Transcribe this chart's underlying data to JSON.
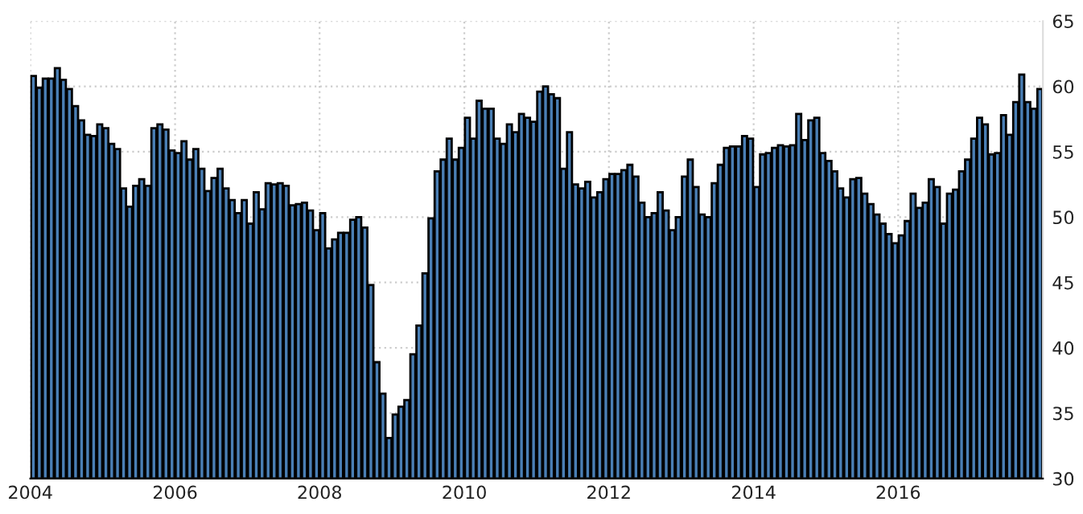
{
  "chart_data": {
    "type": "bar",
    "x": [
      "2004-01",
      "2004-02",
      "2004-03",
      "2004-04",
      "2004-05",
      "2004-06",
      "2004-07",
      "2004-08",
      "2004-09",
      "2004-10",
      "2004-11",
      "2004-12",
      "2005-01",
      "2005-02",
      "2005-03",
      "2005-04",
      "2005-05",
      "2005-06",
      "2005-07",
      "2005-08",
      "2005-09",
      "2005-10",
      "2005-11",
      "2005-12",
      "2006-01",
      "2006-02",
      "2006-03",
      "2006-04",
      "2006-05",
      "2006-06",
      "2006-07",
      "2006-08",
      "2006-09",
      "2006-10",
      "2006-11",
      "2006-12",
      "2007-01",
      "2007-02",
      "2007-03",
      "2007-04",
      "2007-05",
      "2007-06",
      "2007-07",
      "2007-08",
      "2007-09",
      "2007-10",
      "2007-11",
      "2007-12",
      "2008-01",
      "2008-02",
      "2008-03",
      "2008-04",
      "2008-05",
      "2008-06",
      "2008-07",
      "2008-08",
      "2008-09",
      "2008-10",
      "2008-11",
      "2008-12",
      "2009-01",
      "2009-02",
      "2009-03",
      "2009-04",
      "2009-05",
      "2009-06",
      "2009-07",
      "2009-08",
      "2009-09",
      "2009-10",
      "2009-11",
      "2009-12",
      "2010-01",
      "2010-02",
      "2010-03",
      "2010-04",
      "2010-05",
      "2010-06",
      "2010-07",
      "2010-08",
      "2010-09",
      "2010-10",
      "2010-11",
      "2010-12",
      "2011-01",
      "2011-02",
      "2011-03",
      "2011-04",
      "2011-05",
      "2011-06",
      "2011-07",
      "2011-08",
      "2011-09",
      "2011-10",
      "2011-11",
      "2011-12",
      "2012-01",
      "2012-02",
      "2012-03",
      "2012-04",
      "2012-05",
      "2012-06",
      "2012-07",
      "2012-08",
      "2012-09",
      "2012-10",
      "2012-11",
      "2012-12",
      "2013-01",
      "2013-02",
      "2013-03",
      "2013-04",
      "2013-05",
      "2013-06",
      "2013-07",
      "2013-08",
      "2013-09",
      "2013-10",
      "2013-11",
      "2013-12",
      "2014-01",
      "2014-02",
      "2014-03",
      "2014-04",
      "2014-05",
      "2014-06",
      "2014-07",
      "2014-08",
      "2014-09",
      "2014-10",
      "2014-11",
      "2014-12",
      "2015-01",
      "2015-02",
      "2015-03",
      "2015-04",
      "2015-05",
      "2015-06",
      "2015-07",
      "2015-08",
      "2015-09",
      "2015-10",
      "2015-11",
      "2015-12",
      "2016-01",
      "2016-02",
      "2016-03",
      "2016-04",
      "2016-05",
      "2016-06",
      "2016-07",
      "2016-08",
      "2016-09",
      "2016-10",
      "2016-11",
      "2016-12",
      "2017-01",
      "2017-02",
      "2017-03",
      "2017-04",
      "2017-05",
      "2017-06",
      "2017-07",
      "2017-08",
      "2017-09",
      "2017-10",
      "2017-11",
      "2017-12"
    ],
    "values": [
      60.8,
      59.9,
      60.6,
      60.6,
      61.4,
      60.5,
      59.8,
      58.5,
      57.4,
      56.3,
      56.2,
      57.1,
      56.8,
      55.6,
      55.2,
      52.2,
      50.8,
      52.4,
      52.9,
      52.4,
      56.8,
      57.1,
      56.7,
      55.1,
      54.9,
      55.8,
      54.4,
      55.2,
      53.7,
      52.0,
      53.0,
      53.7,
      52.2,
      51.3,
      50.3,
      51.3,
      49.5,
      51.9,
      50.6,
      52.6,
      52.5,
      52.6,
      52.4,
      50.9,
      51.0,
      51.1,
      50.5,
      49.0,
      50.3,
      47.6,
      48.3,
      48.8,
      48.8,
      49.8,
      50.0,
      49.2,
      44.8,
      38.9,
      36.5,
      33.1,
      34.9,
      35.5,
      36.0,
      39.5,
      41.7,
      45.7,
      49.9,
      53.5,
      54.4,
      56.0,
      54.4,
      55.3,
      57.6,
      56.0,
      58.9,
      58.3,
      58.3,
      56.0,
      55.6,
      57.1,
      56.5,
      57.9,
      57.6,
      57.3,
      59.6,
      60.0,
      59.4,
      59.1,
      53.7,
      56.5,
      52.5,
      52.2,
      52.7,
      51.5,
      51.9,
      52.9,
      53.3,
      53.3,
      53.6,
      54.0,
      53.1,
      51.1,
      50.0,
      50.3,
      51.9,
      50.5,
      49.0,
      50.0,
      53.1,
      54.4,
      52.3,
      50.2,
      50.0,
      52.6,
      54.0,
      55.3,
      55.4,
      55.4,
      56.2,
      56.0,
      52.3,
      54.8,
      54.9,
      55.3,
      55.5,
      55.4,
      55.5,
      57.9,
      55.9,
      57.4,
      57.6,
      54.9,
      54.3,
      53.5,
      52.2,
      51.5,
      52.9,
      53.0,
      51.8,
      51.0,
      50.2,
      49.5,
      48.7,
      48.0,
      48.6,
      49.7,
      51.8,
      50.7,
      51.1,
      52.9,
      52.3,
      49.5,
      51.8,
      52.1,
      53.5,
      54.4,
      56.0,
      57.6,
      57.1,
      54.8,
      54.9,
      57.8,
      56.3,
      58.8,
      60.9,
      58.8,
      58.3,
      59.8
    ],
    "color": "#4a7fb5",
    "xlim": [
      "2004-01",
      "2018-01"
    ],
    "xticks": [
      {
        "value": "2004-01",
        "label": "2004"
      },
      {
        "value": "2006-01",
        "label": "2006"
      },
      {
        "value": "2008-01",
        "label": "2008"
      },
      {
        "value": "2010-01",
        "label": "2010"
      },
      {
        "value": "2012-01",
        "label": "2012"
      },
      {
        "value": "2014-01",
        "label": "2014"
      },
      {
        "value": "2016-01",
        "label": "2016"
      }
    ],
    "ylim": [
      30,
      65
    ],
    "yticks": [
      30,
      35,
      40,
      45,
      50,
      55,
      60,
      65
    ],
    "grid": true
  }
}
